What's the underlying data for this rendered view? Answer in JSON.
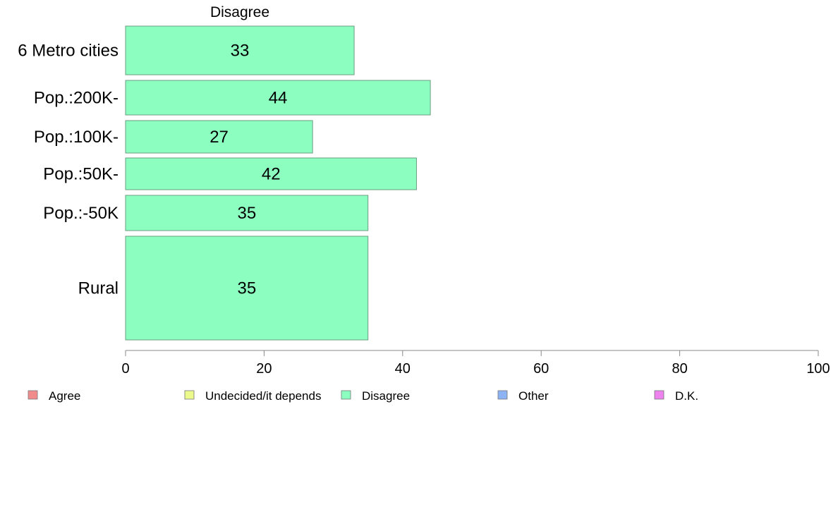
{
  "chart_data": {
    "type": "bar",
    "orientation": "horizontal",
    "title": "Disagree",
    "categories": [
      "6 Metro cities",
      "Pop.:200K-",
      "Pop.:100K-",
      "Pop.:50K-",
      "Pop.:-50K",
      "Rural"
    ],
    "values": [
      33,
      44,
      27,
      42,
      35,
      35
    ],
    "series_color": "#8CFFC0",
    "xlim": [
      0,
      100
    ],
    "xticks": [
      0,
      20,
      40,
      60,
      80,
      100
    ],
    "grid": false,
    "legend_position": "bottom",
    "legend": [
      {
        "label": "Agree",
        "color": "#F28B8B"
      },
      {
        "label": "Undecided/it depends",
        "color": "#ECFA8C"
      },
      {
        "label": "Disagree",
        "color": "#8CFFC0"
      },
      {
        "label": "Other",
        "color": "#8CB4F5"
      },
      {
        "label": "D.K.",
        "color": "#EE82EE"
      }
    ]
  }
}
